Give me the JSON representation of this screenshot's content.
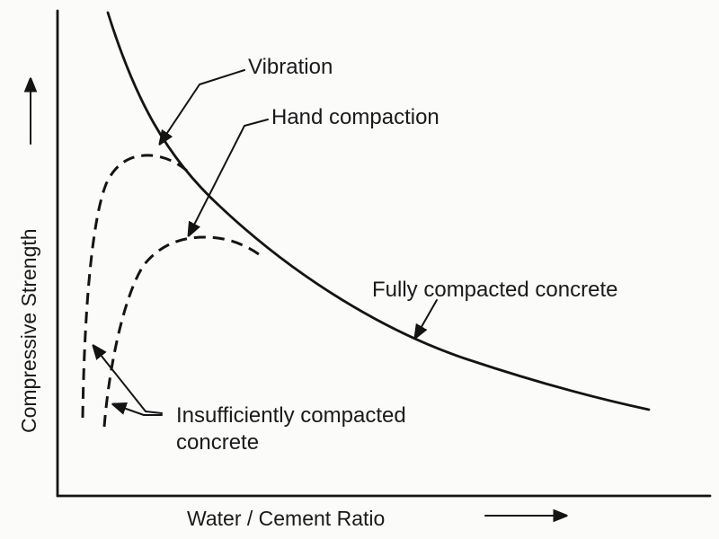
{
  "diagram": {
    "ylabel": "Compressive Strength",
    "xlabel": "Water / Cement Ratio",
    "labels": {
      "vibration": "Vibration",
      "hand_compaction": "Hand compaction",
      "fully_compacted": "Fully compacted concrete",
      "insufficient_line1": "Insufficiently compacted",
      "insufficient_line2": "concrete"
    },
    "colors": {
      "ink": "#141414",
      "paper": "#fbfbfa"
    }
  }
}
